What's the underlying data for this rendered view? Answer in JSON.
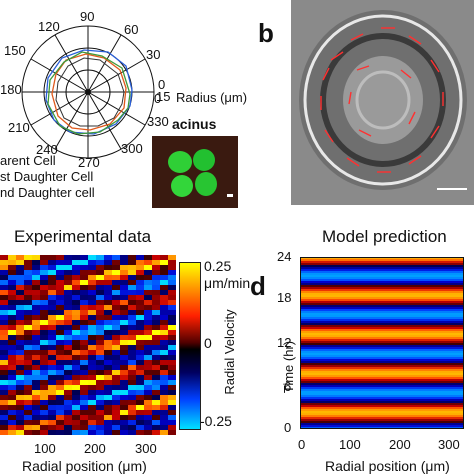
{
  "panel_a": {
    "angle_labels": [
      "90",
      "60",
      "30",
      "0",
      "330",
      "300",
      "270",
      "240",
      "210",
      "180",
      "150",
      "120"
    ],
    "radius_ticks": [
      "0",
      "15"
    ],
    "radius_label": "Radius (μm)",
    "legend": [
      "arent Cell",
      "st Daughter Cell",
      "nd Daughter cell"
    ],
    "inset_label": "acinus"
  },
  "panel_b": {
    "letter": "b"
  },
  "panel_c": {
    "title": "Experimental data",
    "xlabel": "Radial position (μm)",
    "xticks": [
      "100",
      "200",
      "300"
    ],
    "colorbar_ticks": [
      "0.25",
      "μm/min",
      "0",
      "-0.25"
    ],
    "colorbar_label": "Radial Velocity"
  },
  "panel_d": {
    "letter": "d",
    "title": "Model prediction",
    "ylabel": "Time (hr)",
    "yticks": [
      "24",
      "18",
      "12",
      "6",
      "0"
    ],
    "xticks": [
      "0",
      "100",
      "200",
      "300"
    ],
    "xlabel": "Radial position (μm)"
  },
  "colors": {
    "line_parent": "#e05a1c",
    "line_first": "#2a5fd8",
    "line_second": "#3f9a3a",
    "colormap_high": "#ffff00",
    "colormap_low": "#00e0ff"
  }
}
